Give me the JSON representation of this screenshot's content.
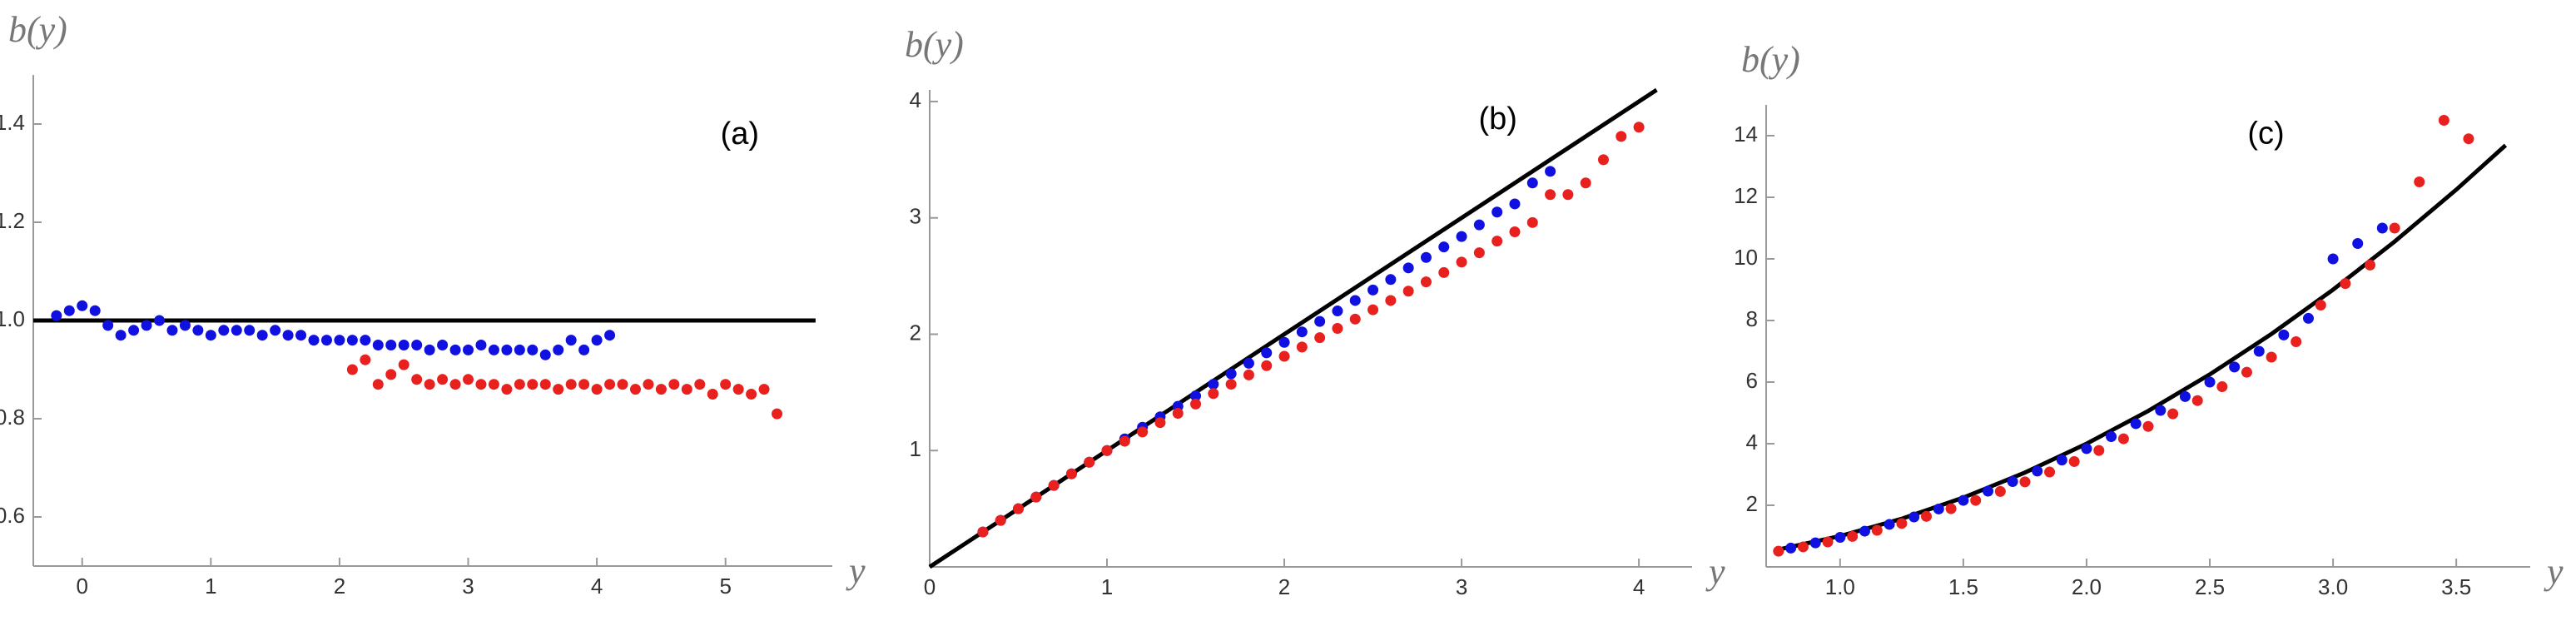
{
  "chart_data": [
    {
      "type": "scatter",
      "ylabel": "b(y)",
      "xlabel": "y",
      "annotation": "(a)",
      "xlim": [
        -0.38,
        5.83
      ],
      "ylim": [
        0.5,
        1.5
      ],
      "xticks": [
        0,
        1,
        2,
        3,
        4,
        5
      ],
      "yticks": [
        0.6,
        0.8,
        {
          "value": 1,
          "label": "1.0"
        },
        1.2,
        1.4
      ],
      "line": {
        "color": "#000000",
        "x": [
          -0.38,
          5.7
        ],
        "values": [
          1,
          1
        ]
      },
      "series": [
        {
          "color": "#1010e0",
          "x": [
            -0.2,
            -0.1,
            0,
            0.1,
            0.2,
            0.3,
            0.4,
            0.5,
            0.6,
            0.7,
            0.8,
            0.9,
            1.0,
            1.1,
            1.2,
            1.3,
            1.4,
            1.5,
            1.6,
            1.7,
            1.8,
            1.9,
            2.0,
            2.1,
            2.2,
            2.3,
            2.4,
            2.5,
            2.6,
            2.7,
            2.8,
            2.9,
            3.0,
            3.1,
            3.2,
            3.3,
            3.4,
            3.5,
            3.6,
            3.7,
            3.8,
            3.9,
            4.0,
            4.1
          ],
          "values": [
            1.01,
            1.02,
            1.03,
            1.02,
            0.99,
            0.97,
            0.98,
            0.99,
            1.0,
            0.98,
            0.99,
            0.98,
            0.97,
            0.98,
            0.98,
            0.98,
            0.97,
            0.98,
            0.97,
            0.97,
            0.96,
            0.96,
            0.96,
            0.96,
            0.96,
            0.95,
            0.95,
            0.95,
            0.95,
            0.94,
            0.95,
            0.94,
            0.94,
            0.95,
            0.94,
            0.94,
            0.94,
            0.94,
            0.93,
            0.94,
            0.96,
            0.94,
            0.96,
            0.97
          ]
        },
        {
          "color": "#e8211f",
          "x": [
            2.1,
            2.2,
            2.3,
            2.4,
            2.5,
            2.6,
            2.7,
            2.8,
            2.9,
            3.0,
            3.1,
            3.2,
            3.3,
            3.4,
            3.5,
            3.6,
            3.7,
            3.8,
            3.9,
            4.0,
            4.1,
            4.2,
            4.3,
            4.4,
            4.5,
            4.6,
            4.7,
            4.8,
            4.9,
            5.0,
            5.1,
            5.2,
            5.3,
            5.4
          ],
          "values": [
            0.9,
            0.92,
            0.87,
            0.89,
            0.91,
            0.88,
            0.87,
            0.88,
            0.87,
            0.88,
            0.87,
            0.87,
            0.86,
            0.87,
            0.87,
            0.87,
            0.86,
            0.87,
            0.87,
            0.86,
            0.87,
            0.87,
            0.86,
            0.87,
            0.86,
            0.87,
            0.86,
            0.87,
            0.85,
            0.87,
            0.86,
            0.85,
            0.86,
            0.81
          ]
        }
      ]
    },
    {
      "type": "scatter",
      "ylabel": "b(y)",
      "xlabel": "y",
      "annotation": "(b)",
      "xlim": [
        0,
        4.3
      ],
      "ylim": [
        0,
        4.1
      ],
      "xticks": [
        0,
        1,
        2,
        3,
        4
      ],
      "yticks": [
        1,
        2,
        3,
        4
      ],
      "line": {
        "color": "#000000",
        "x": [
          0,
          4.1
        ],
        "values": [
          0,
          4.1
        ]
      },
      "series": [
        {
          "color": "#1010e0",
          "x": [
            0.3,
            0.4,
            0.5,
            0.6,
            0.7,
            0.8,
            0.9,
            1.0,
            1.1,
            1.2,
            1.3,
            1.4,
            1.5,
            1.6,
            1.7,
            1.8,
            1.9,
            2.0,
            2.1,
            2.2,
            2.3,
            2.4,
            2.5,
            2.6,
            2.7,
            2.8,
            2.9,
            3.0,
            3.1,
            3.2,
            3.3,
            3.4,
            3.5
          ],
          "values": [
            0.3,
            0.4,
            0.5,
            0.6,
            0.7,
            0.8,
            0.9,
            1.0,
            1.1,
            1.2,
            1.29,
            1.38,
            1.47,
            1.57,
            1.66,
            1.75,
            1.84,
            1.93,
            2.02,
            2.11,
            2.2,
            2.29,
            2.38,
            2.47,
            2.57,
            2.66,
            2.75,
            2.84,
            2.94,
            3.05,
            3.12,
            3.3,
            3.4
          ]
        },
        {
          "color": "#e8211f",
          "x": [
            0.3,
            0.4,
            0.5,
            0.6,
            0.7,
            0.8,
            0.9,
            1.0,
            1.1,
            1.2,
            1.3,
            1.4,
            1.5,
            1.6,
            1.7,
            1.8,
            1.9,
            2.0,
            2.1,
            2.2,
            2.3,
            2.4,
            2.5,
            2.6,
            2.7,
            2.8,
            2.9,
            3.0,
            3.1,
            3.2,
            3.3,
            3.4,
            3.5,
            3.6,
            3.7,
            3.8,
            3.9,
            4.0
          ],
          "values": [
            0.3,
            0.4,
            0.5,
            0.6,
            0.7,
            0.8,
            0.9,
            1.0,
            1.08,
            1.16,
            1.24,
            1.32,
            1.4,
            1.49,
            1.57,
            1.65,
            1.73,
            1.81,
            1.89,
            1.97,
            2.05,
            2.13,
            2.21,
            2.29,
            2.37,
            2.45,
            2.53,
            2.62,
            2.7,
            2.8,
            2.88,
            2.96,
            3.2,
            3.2,
            3.3,
            3.5,
            3.7,
            3.78
          ]
        }
      ]
    },
    {
      "type": "scatter",
      "ylabel": "b(y)",
      "xlabel": "y",
      "annotation": "(c)",
      "xlim": [
        0.7,
        3.8
      ],
      "ylim": [
        0,
        15
      ],
      "xticks": [
        {
          "value": 1,
          "label": "1.0"
        },
        1.5,
        {
          "value": 2,
          "label": "2.0"
        },
        2.5,
        {
          "value": 3,
          "label": "3.0"
        },
        3.5
      ],
      "yticks": [
        2,
        4,
        6,
        8,
        10,
        12,
        14
      ],
      "line": {
        "color": "#000000",
        "x": [
          0.75,
          1.0,
          1.25,
          1.5,
          1.75,
          2.0,
          2.25,
          2.5,
          2.75,
          3.0,
          3.25,
          3.5,
          3.7
        ],
        "values": [
          0.5625,
          1,
          1.5625,
          2.25,
          3.0625,
          4,
          5.0625,
          6.25,
          7.5625,
          9,
          10.5625,
          12.25,
          13.69
        ]
      },
      "series": [
        {
          "color": "#1010e0",
          "x": [
            0.8,
            0.9,
            1.0,
            1.1,
            1.2,
            1.3,
            1.4,
            1.5,
            1.6,
            1.7,
            1.8,
            1.9,
            2.0,
            2.1,
            2.2,
            2.3,
            2.4,
            2.5,
            2.6,
            2.7,
            2.8,
            2.9,
            3.0,
            3.1,
            3.2
          ],
          "values": [
            0.61,
            0.78,
            0.96,
            1.16,
            1.38,
            1.62,
            1.88,
            2.16,
            2.46,
            2.77,
            3.11,
            3.47,
            3.84,
            4.23,
            4.65,
            5.08,
            5.53,
            6.0,
            6.49,
            7.0,
            7.53,
            8.07,
            10.0,
            10.5,
            11.0
          ]
        },
        {
          "color": "#e8211f",
          "x": [
            0.75,
            0.85,
            0.95,
            1.05,
            1.15,
            1.25,
            1.35,
            1.45,
            1.55,
            1.65,
            1.75,
            1.85,
            1.95,
            2.05,
            2.15,
            2.25,
            2.35,
            2.45,
            2.55,
            2.65,
            2.75,
            2.85,
            2.95,
            3.05,
            3.15,
            3.25,
            3.35,
            3.45,
            3.55
          ],
          "values": [
            0.51,
            0.65,
            0.81,
            0.99,
            1.19,
            1.41,
            1.64,
            1.89,
            2.16,
            2.45,
            2.76,
            3.08,
            3.42,
            3.78,
            4.16,
            4.56,
            4.97,
            5.4,
            5.85,
            6.32,
            6.81,
            7.31,
            8.5,
            9.2,
            9.8,
            11.0,
            12.5,
            14.5,
            13.9
          ]
        }
      ]
    }
  ]
}
